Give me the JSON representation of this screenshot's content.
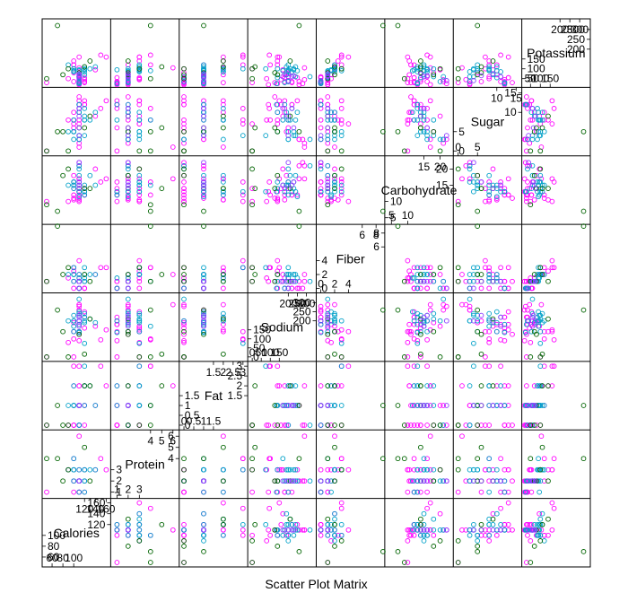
{
  "chart_data": {
    "type": "scatter",
    "title": "Scatter Plot Matrix",
    "variables": [
      {
        "name": "Calories",
        "lim": [
          45,
          165
        ],
        "ticks_low": [
          60,
          80,
          100,
          120,
          140,
          160
        ],
        "ticks_high": [
          100,
          120,
          140,
          160
        ]
      },
      {
        "name": "Protein",
        "lim": [
          0.6,
          6.4
        ],
        "ticks_low": [
          1,
          2,
          3,
          4,
          5,
          6
        ],
        "ticks_high": [
          4,
          5,
          6
        ]
      },
      {
        "name": "Fat",
        "lim": [
          -0.15,
          3.15
        ],
        "ticks_low": [
          0.0,
          0.5,
          1.0,
          1.5,
          2.0,
          2.5
        ],
        "ticks_high": [
          1.5,
          2.0,
          2.5,
          3.0
        ]
      },
      {
        "name": "Sodium",
        "lim": [
          -15,
          345
        ],
        "ticks_low": [
          0,
          50,
          100,
          150
        ],
        "ticks_high": [
          150,
          200,
          250,
          300
        ]
      },
      {
        "name": "Fiber",
        "lim": [
          -0.4,
          9.0
        ],
        "ticks_low": [
          0,
          2,
          4
        ],
        "ticks_high": [
          4,
          6,
          8
        ]
      },
      {
        "name": "Carbohydrate",
        "lim": [
          3.5,
          23.5
        ],
        "ticks_low": [
          5,
          10,
          15
        ],
        "ticks_high": [
          15,
          20
        ]
      },
      {
        "name": "Sugar",
        "lim": [
          -0.8,
          16.0
        ],
        "ticks_low": [
          0,
          5,
          10
        ],
        "ticks_high": [
          10,
          15
        ]
      },
      {
        "name": "Potassium",
        "lim": [
          15,
          345
        ],
        "ticks_low": [
          50,
          100,
          150
        ],
        "ticks_high": [
          200,
          250,
          300
        ]
      }
    ],
    "groups": [
      {
        "color": "#ff00ff"
      },
      {
        "color": "#00a0c8"
      },
      {
        "color": "#006400"
      },
      {
        "color": "#8c3cff"
      }
    ],
    "points": [
      [
        110,
        2,
        2,
        180,
        1.5,
        10.5,
        10,
        70,
        0
      ],
      [
        120,
        3,
        1,
        250,
        0,
        12,
        13,
        55,
        0
      ],
      [
        110,
        2,
        1,
        260,
        0,
        21,
        3,
        35,
        0
      ],
      [
        110,
        1,
        0,
        180,
        0,
        12,
        13,
        55,
        0
      ],
      [
        120,
        2,
        1,
        220,
        0,
        12,
        12,
        35,
        0
      ],
      [
        110,
        2,
        0,
        125,
        1,
        11,
        14,
        30,
        0
      ],
      [
        110,
        2,
        0,
        290,
        1,
        21,
        2,
        45,
        0
      ],
      [
        110,
        3,
        3,
        140,
        4,
        10,
        7,
        160,
        0
      ],
      [
        100,
        2,
        0,
        190,
        1,
        18,
        5,
        80,
        0
      ],
      [
        110,
        1,
        1,
        180,
        0,
        14,
        11,
        35,
        0
      ],
      [
        110,
        1,
        0,
        90,
        1,
        13,
        12,
        20,
        0
      ],
      [
        100,
        3,
        2,
        140,
        2.5,
        10.5,
        8,
        140,
        0
      ],
      [
        120,
        1,
        2,
        220,
        0,
        12,
        12,
        30,
        0
      ],
      [
        110,
        1,
        1,
        140,
        0,
        13,
        12,
        25,
        0
      ],
      [
        100,
        1,
        0,
        200,
        0,
        16,
        6,
        35,
        0
      ],
      [
        110,
        2,
        1,
        200,
        0,
        16,
        8,
        60,
        0
      ],
      [
        100,
        3,
        0,
        0,
        3,
        14,
        7,
        100,
        0
      ],
      [
        140,
        3,
        1,
        170,
        2,
        20,
        9,
        95,
        0
      ],
      [
        110,
        2,
        0,
        280,
        0,
        22,
        3,
        25,
        0
      ],
      [
        100,
        2,
        1,
        140,
        2,
        11,
        10,
        120,
        0
      ],
      [
        110,
        6,
        2,
        290,
        2,
        17,
        1,
        105,
        0
      ],
      [
        90,
        3,
        0,
        80,
        1.5,
        10,
        8,
        50,
        0
      ],
      [
        110,
        2,
        1,
        260,
        1,
        17,
        3,
        20,
        0
      ],
      [
        150,
        4,
        3,
        95,
        3,
        16,
        11,
        170,
        0
      ],
      [
        160,
        3,
        2,
        150,
        3,
        17,
        13,
        160,
        0
      ],
      [
        50,
        1,
        0,
        0,
        1,
        10,
        0,
        30,
        0
      ],
      [
        120,
        3,
        0,
        160,
        1,
        14,
        12,
        45,
        0
      ],
      [
        100,
        4,
        3,
        100,
        3,
        12,
        8,
        120,
        0
      ],
      [
        110,
        2,
        0,
        320,
        1,
        21,
        3,
        60,
        1
      ],
      [
        110,
        1,
        1,
        135,
        0,
        13,
        12,
        25,
        1
      ],
      [
        100,
        3,
        1,
        200,
        3,
        15,
        5,
        90,
        1
      ],
      [
        110,
        2,
        1,
        180,
        0,
        13,
        12,
        30,
        1
      ],
      [
        110,
        2,
        1,
        240,
        1,
        18,
        4,
        60,
        1
      ],
      [
        130,
        3,
        2,
        210,
        2,
        18,
        8,
        100,
        1
      ],
      [
        120,
        3,
        2,
        240,
        2,
        13,
        8,
        110,
        1
      ],
      [
        120,
        2,
        2,
        220,
        1,
        13,
        11,
        85,
        1
      ],
      [
        110,
        3,
        1,
        230,
        2,
        16,
        4,
        95,
        1
      ],
      [
        100,
        3,
        2,
        200,
        2,
        16,
        3,
        85,
        1
      ],
      [
        110,
        2,
        1,
        140,
        1,
        14,
        10,
        55,
        1
      ],
      [
        100,
        4,
        1,
        170,
        1,
        15,
        8,
        90,
        1
      ],
      [
        140,
        3,
        1,
        190,
        2,
        15,
        10,
        110,
        1
      ],
      [
        90,
        3,
        1,
        200,
        2,
        15,
        5,
        120,
        1
      ],
      [
        110,
        2,
        0,
        200,
        0,
        20,
        3,
        35,
        1
      ],
      [
        120,
        2,
        1,
        190,
        1,
        15,
        9,
        70,
        1
      ],
      [
        100,
        2,
        1,
        230,
        2,
        14,
        5,
        100,
        1
      ],
      [
        120,
        3,
        3,
        75,
        3,
        13,
        4,
        100,
        1
      ],
      [
        110,
        2,
        1,
        250,
        1.5,
        11.5,
        10,
        90,
        1
      ],
      [
        100,
        3,
        1,
        140,
        2,
        16,
        5,
        100,
        1
      ],
      [
        120,
        1,
        2,
        200,
        1.5,
        12,
        8,
        95,
        1
      ],
      [
        70,
        4,
        1,
        260,
        9,
        7,
        5,
        320,
        2
      ],
      [
        80,
        2,
        0,
        140,
        2,
        18,
        5,
        70,
        2
      ],
      [
        130,
        2,
        2,
        210,
        1,
        14,
        9,
        140,
        2
      ],
      [
        50,
        4,
        0,
        0,
        1,
        9,
        0,
        50,
        2
      ],
      [
        90,
        3,
        0,
        0,
        3,
        20,
        0,
        100,
        2
      ],
      [
        120,
        5,
        2,
        15,
        2,
        14,
        6,
        110,
        2
      ],
      [
        110,
        2,
        1,
        125,
        1,
        14,
        6,
        80,
        2
      ],
      [
        110,
        2,
        1,
        200,
        0,
        22,
        4,
        40,
        3
      ],
      [
        110,
        2,
        1,
        220,
        1,
        15,
        11,
        60,
        3
      ],
      [
        110,
        2,
        1,
        170,
        1,
        15,
        11,
        60,
        3
      ],
      [
        110,
        2,
        1,
        200,
        1,
        14,
        9,
        75,
        3
      ],
      [
        110,
        2,
        1,
        230,
        1,
        16,
        6,
        65,
        3
      ]
    ]
  }
}
